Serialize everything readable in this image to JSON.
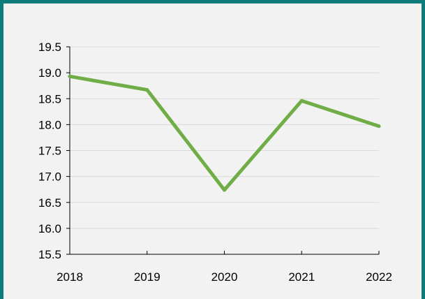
{
  "chart_data": {
    "type": "line",
    "title": "",
    "xlabel": "",
    "ylabel": "",
    "categories": [
      "2018",
      "2019",
      "2020",
      "2021",
      "2022"
    ],
    "series": [
      {
        "values": [
          18.93,
          18.67,
          16.74,
          18.46,
          17.97
        ]
      }
    ],
    "ylim": [
      15.5,
      19.5
    ],
    "yticks": [
      "15.5",
      "16.0",
      "16.5",
      "17.0",
      "17.5",
      "18.0",
      "18.5",
      "19.0",
      "19.5"
    ],
    "grid": true,
    "legend": "none",
    "colors": {
      "line": "#70ad47",
      "background": "#f2f2f2",
      "border": "#0e7c7b",
      "grid": "#d9d9d9"
    }
  }
}
